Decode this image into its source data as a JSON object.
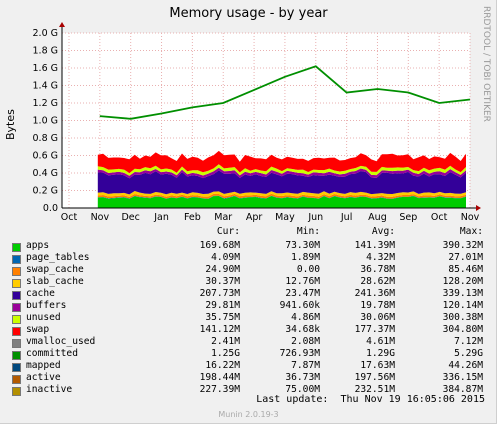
{
  "title": "Memory usage - by year",
  "side_text": "RRDTOOL / TOBI OETIKER",
  "footer": {
    "last_update_label": "Last update:",
    "last_update_value": "Thu Nov 19 16:05:06 2015",
    "generator": "Munin 2.0.19-3"
  },
  "legend_headers": {
    "cur": "Cur:",
    "min": "Min:",
    "avg": "Avg:",
    "max": "Max:"
  },
  "colors": {
    "background": "#f0f0f0",
    "plot_bg": "#ffffff",
    "grid": "#e0a0a0"
  },
  "chart_data": {
    "type": "area",
    "ylabel": "Bytes",
    "ylim": [
      0,
      2.0
    ],
    "y_unit": "G",
    "y_ticks": [
      "0.0",
      "0.2 G",
      "0.4 G",
      "0.6 G",
      "0.8 G",
      "1.0 G",
      "1.2 G",
      "1.4 G",
      "1.6 G",
      "1.8 G",
      "2.0 G"
    ],
    "y_tick_values": [
      0,
      0.2,
      0.4,
      0.6,
      0.8,
      1.0,
      1.2,
      1.4,
      1.6,
      1.8,
      2.0
    ],
    "x_ticks": [
      "Oct",
      "Nov",
      "Dec",
      "Jan",
      "Feb",
      "Mar",
      "Apr",
      "May",
      "Jun",
      "Jul",
      "Aug",
      "Sep",
      "Oct",
      "Nov"
    ],
    "grid": true,
    "stacked_series": [
      {
        "name": "apps",
        "color": "#00cc00",
        "level": 0.12
      },
      {
        "name": "page_tables",
        "color": "#0066b3",
        "level": 0.004
      },
      {
        "name": "swap_cache",
        "color": "#ff8000",
        "level": 0.02
      },
      {
        "name": "slab_cache",
        "color": "#ffcc00",
        "level": 0.03
      },
      {
        "name": "cache",
        "color": "#330099",
        "level": 0.21
      },
      {
        "name": "buffers",
        "color": "#990099",
        "level": 0.03
      },
      {
        "name": "unused",
        "color": "#ccff00",
        "level": 0.035
      },
      {
        "name": "swap",
        "color": "#ff0000",
        "level": 0.14
      }
    ],
    "committed": {
      "name": "committed",
      "color": "#008f00",
      "x": [
        "Nov",
        "Dec",
        "Jan",
        "Feb",
        "Mar",
        "Apr",
        "May",
        "Jun",
        "Jul",
        "Aug",
        "Sep",
        "Oct",
        "Nov"
      ],
      "values": [
        1.05,
        1.02,
        1.08,
        1.15,
        1.2,
        1.35,
        1.5,
        1.62,
        1.32,
        1.36,
        1.32,
        1.2,
        1.24
      ]
    },
    "series": [
      {
        "name": "apps",
        "color": "#00cc00",
        "cur": "169.68M",
        "min": "73.30M",
        "avg": "141.39M",
        "max": "390.32M"
      },
      {
        "name": "page_tables",
        "color": "#0066b3",
        "cur": "4.09M",
        "min": "1.89M",
        "avg": "4.32M",
        "max": "27.01M"
      },
      {
        "name": "swap_cache",
        "color": "#ff8000",
        "cur": "24.90M",
        "min": "0.00",
        "avg": "36.78M",
        "max": "85.46M"
      },
      {
        "name": "slab_cache",
        "color": "#ffcc00",
        "cur": "30.37M",
        "min": "12.76M",
        "avg": "28.62M",
        "max": "128.20M"
      },
      {
        "name": "cache",
        "color": "#330099",
        "cur": "207.73M",
        "min": "23.47M",
        "avg": "241.36M",
        "max": "339.13M"
      },
      {
        "name": "buffers",
        "color": "#990099",
        "cur": "29.81M",
        "min": "941.60k",
        "avg": "19.78M",
        "max": "120.14M"
      },
      {
        "name": "unused",
        "color": "#ccff00",
        "cur": "35.75M",
        "min": "4.86M",
        "avg": "30.06M",
        "max": "300.38M"
      },
      {
        "name": "swap",
        "color": "#ff0000",
        "cur": "141.12M",
        "min": "34.68k",
        "avg": "177.37M",
        "max": "304.80M"
      },
      {
        "name": "vmalloc_used",
        "color": "#808080",
        "cur": "2.41M",
        "min": "2.08M",
        "avg": "4.61M",
        "max": "7.12M"
      },
      {
        "name": "committed",
        "color": "#008f00",
        "cur": "1.25G",
        "min": "726.93M",
        "avg": "1.29G",
        "max": "5.29G"
      },
      {
        "name": "mapped",
        "color": "#00487d",
        "cur": "16.22M",
        "min": "7.87M",
        "avg": "17.63M",
        "max": "44.26M"
      },
      {
        "name": "active",
        "color": "#b35a00",
        "cur": "198.44M",
        "min": "36.73M",
        "avg": "197.56M",
        "max": "336.15M"
      },
      {
        "name": "inactive",
        "color": "#b38f00",
        "cur": "227.39M",
        "min": "75.00M",
        "avg": "232.51M",
        "max": "384.87M"
      }
    ]
  }
}
